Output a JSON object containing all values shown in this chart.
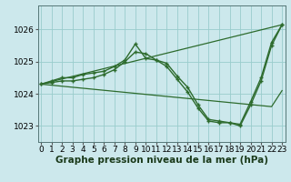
{
  "xlabel": "Graphe pression niveau de la mer (hPa)",
  "background_color": "#cce8ec",
  "grid_color": "#99cccc",
  "line_color": "#2d6b2d",
  "ylim": [
    1022.5,
    1026.75
  ],
  "xlim": [
    -0.3,
    23.3
  ],
  "yticks": [
    1023,
    1024,
    1025,
    1026
  ],
  "xticks": [
    0,
    1,
    2,
    3,
    4,
    5,
    6,
    7,
    8,
    9,
    10,
    11,
    12,
    13,
    14,
    15,
    16,
    17,
    18,
    19,
    20,
    21,
    22,
    23
  ],
  "series": [
    {
      "x": [
        0,
        1,
        2,
        3,
        4,
        5,
        6,
        7,
        8,
        9,
        10,
        11,
        12,
        13,
        14,
        15,
        16,
        17,
        18,
        19,
        20,
        21,
        22,
        23
      ],
      "y": [
        1024.3,
        1024.4,
        1024.5,
        1024.5,
        1024.6,
        1024.65,
        1024.7,
        1024.85,
        1025.05,
        1025.55,
        1025.1,
        1025.05,
        1024.95,
        1024.55,
        1024.2,
        1023.65,
        1023.2,
        1023.15,
        1023.1,
        1023.0,
        1023.65,
        1024.4,
        1025.5,
        1026.15
      ]
    },
    {
      "x": [
        0,
        1,
        2,
        3,
        4,
        5,
        6,
        7,
        8,
        9,
        10,
        11,
        12,
        13,
        14,
        15,
        16,
        17,
        18,
        19,
        20,
        21,
        22,
        23
      ],
      "y": [
        1024.3,
        1024.35,
        1024.4,
        1024.4,
        1024.45,
        1024.5,
        1024.6,
        1024.75,
        1025.0,
        1025.3,
        1025.25,
        1025.05,
        1024.85,
        1024.45,
        1024.05,
        1023.55,
        1023.15,
        1023.1,
        1023.1,
        1023.05,
        1023.75,
        1024.5,
        1025.6,
        1026.15
      ]
    },
    {
      "x": [
        0,
        23
      ],
      "y": [
        1024.3,
        1026.15
      ]
    },
    {
      "x": [
        0,
        22,
        23
      ],
      "y": [
        1024.3,
        1023.6,
        1024.1
      ]
    }
  ],
  "line_width": 1.0,
  "marker_size": 3.5,
  "font_size_xlabel": 7.5,
  "font_size_tick": 6.5
}
